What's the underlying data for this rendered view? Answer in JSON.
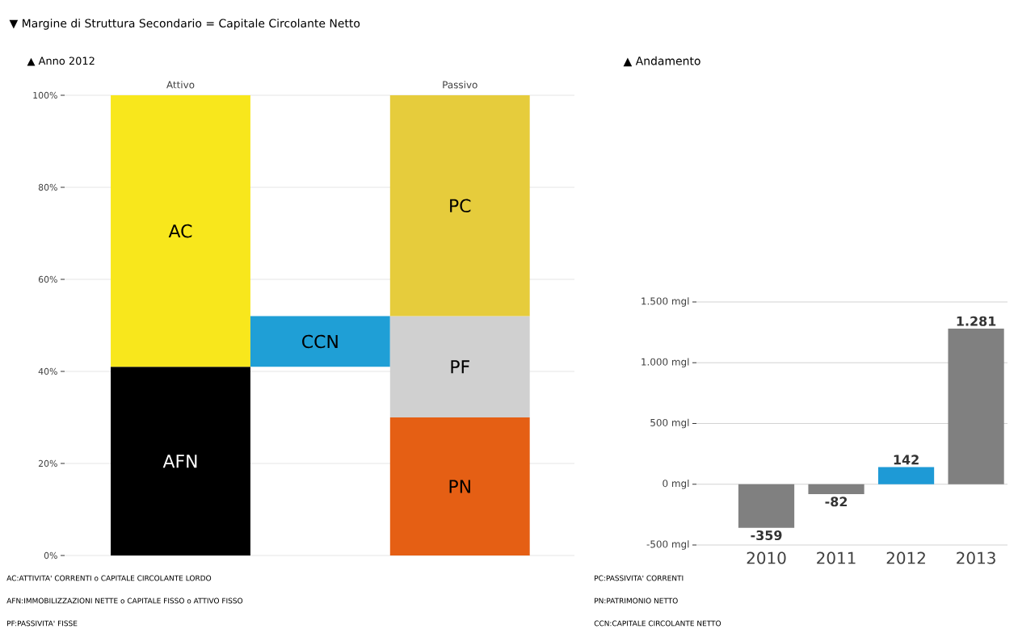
{
  "chart_data": [
    {
      "type": "bar",
      "title": "▼ Margine di Struttura Secondario = Capitale Circolante Netto",
      "subtitle": "▲ Anno 2012",
      "categories": [
        "Attivo",
        null,
        "Passivo"
      ],
      "series": [
        {
          "name": "AFN",
          "color": "#000000",
          "values": [
            41,
            null,
            null
          ],
          "base": [
            0,
            null,
            null
          ]
        },
        {
          "name": "AC",
          "color": "#f8e71c",
          "values": [
            59,
            null,
            null
          ],
          "base": [
            41,
            null,
            null
          ]
        },
        {
          "name": "CCN",
          "color": "#1f9fd6",
          "values": [
            null,
            11,
            null
          ],
          "base": [
            null,
            41,
            null
          ]
        },
        {
          "name": "PN",
          "color": "#e55f14",
          "values": [
            null,
            null,
            30
          ],
          "base": [
            null,
            null,
            0
          ]
        },
        {
          "name": "PF",
          "color": "#d0d0d0",
          "values": [
            null,
            null,
            22
          ],
          "base": [
            null,
            null,
            30
          ]
        },
        {
          "name": "PC",
          "color": "#e6cc3c",
          "values": [
            null,
            null,
            48
          ],
          "base": [
            null,
            null,
            52
          ]
        }
      ],
      "ylim": [
        0,
        100
      ],
      "yticks": [
        {
          "value": 0,
          "label": "0%"
        },
        {
          "value": 20,
          "label": "20%"
        },
        {
          "value": 40,
          "label": "40%"
        },
        {
          "value": 60,
          "label": "60%"
        },
        {
          "value": 80,
          "label": "80%"
        },
        {
          "value": 100,
          "label": "100%"
        }
      ],
      "grid": "y",
      "annotations": [
        "AC:ATTIVITA' CORRENTI o CAPITALE CIRCOLANTE LORDO",
        "AFN:IMMOBILIZZAZIONI NETTE o CAPITALE FISSO o ATTIVO FISSO",
        "PF:PASSIVITA' FISSE"
      ]
    },
    {
      "type": "bar",
      "title": "▲ Andamento",
      "categories": [
        "2010",
        "2011",
        "2012",
        "2013"
      ],
      "values": [
        -359,
        -82,
        142,
        1281
      ],
      "colors": [
        "#808080",
        "#808080",
        "#1e9ad6",
        "#808080"
      ],
      "value_labels": [
        "-359",
        "-82",
        "142",
        "1.281"
      ],
      "ylim": [
        -500,
        1500
      ],
      "yticks": [
        {
          "value": -500,
          "label": "-500 mgl"
        },
        {
          "value": 0,
          "label": "0 mgl"
        },
        {
          "value": 500,
          "label": "500 mgl"
        },
        {
          "value": 1000,
          "label": "1.000 mgl"
        },
        {
          "value": 1500,
          "label": "1.500 mgl"
        }
      ],
      "grid": "y",
      "annotations": [
        "PC:PASSIVITA' CORRENTI",
        "PN:PATRIMONIO NETTO",
        "CCN:CAPITALE CIRCOLANTE NETTO"
      ]
    }
  ]
}
